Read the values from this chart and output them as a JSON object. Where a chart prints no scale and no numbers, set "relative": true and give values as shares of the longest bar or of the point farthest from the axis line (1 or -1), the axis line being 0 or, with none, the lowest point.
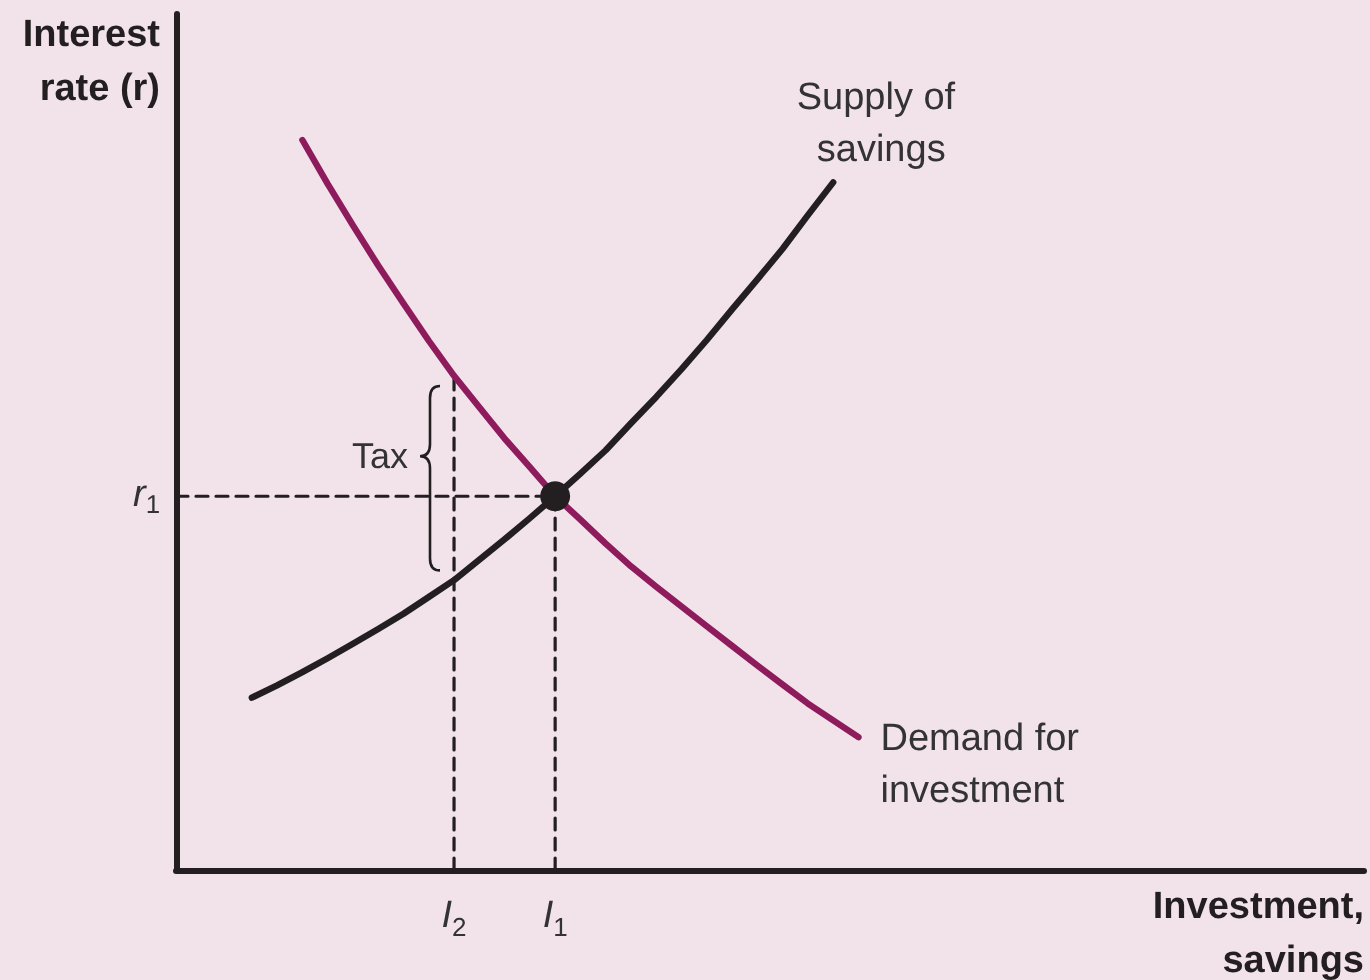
{
  "chart_data": {
    "type": "line",
    "relative": true,
    "xlabel": "Investment, savings",
    "ylabel": "Interest rate (r)",
    "categories": [
      null,
      null,
      null,
      null,
      null,
      null,
      null,
      null,
      null,
      null,
      null,
      "I$_{2}$",
      null,
      null,
      null,
      "I$_{1}$",
      null,
      null,
      null,
      null,
      null,
      null,
      null,
      null,
      null,
      null,
      null,
      null,
      null,
      null,
      null,
      null,
      null,
      null,
      null,
      null,
      null,
      null,
      null,
      null,
      null,
      null,
      null,
      null,
      null,
      null,
      null,
      null
    ],
    "marker": "none",
    "line_style": "solid",
    "grid": false,
    "legend": false,
    "series": [
      {
        "name": "Supply of savings",
        "color": "#231f20",
        "values": [
          null,
          null,
          null,
          0.236,
          0.253,
          0.271,
          0.29,
          0.31,
          0.33,
          0.351,
          0.374,
          0.397,
          0.425,
          0.453,
          0.482,
          0.512,
          0.543,
          0.575,
          0.612,
          0.648,
          0.686,
          0.726,
          0.768,
          0.809,
          0.851,
          0.897,
          0.942,
          null,
          null,
          null,
          null,
          null,
          null,
          null,
          null,
          null,
          null,
          null,
          null,
          null,
          null,
          null,
          null,
          null,
          null,
          null,
          null,
          null
        ]
      },
      {
        "name": "Demand for investment",
        "color": "#8e1c5c",
        "values": [
          null,
          null,
          null,
          null,
          null,
          1,
          0.94,
          0.883,
          0.828,
          0.776,
          0.725,
          0.677,
          0.634,
          0.591,
          0.552,
          0.512,
          0.48,
          0.447,
          0.416,
          0.388,
          0.361,
          0.334,
          0.307,
          0.28,
          0.254,
          0.228,
          0.205,
          0.182,
          null,
          null,
          null,
          null,
          null,
          null,
          null,
          null,
          null,
          null,
          null,
          null,
          null,
          null,
          null,
          null,
          null,
          null,
          null,
          null
        ]
      },
      {
        "color": "#231f20",
        "line_style": "dashed",
        "values": [
          0.512,
          0.512,
          0.512,
          0.512,
          0.512,
          0.512,
          0.512,
          0.512,
          0.512,
          0.512,
          0.512,
          0.512,
          0.512,
          0.512,
          0.512,
          0.512,
          null,
          null,
          null,
          null,
          null,
          null,
          null,
          null,
          null,
          null,
          null,
          null,
          null,
          null,
          null,
          null,
          null,
          null,
          null,
          null,
          null,
          null,
          null,
          null,
          null,
          null,
          null,
          null,
          null,
          null,
          null,
          null
        ]
      },
      {
        "color": "#231f20",
        "line_style": "dashed",
        "x": [
          "I$_{1}$",
          "I$_{1}$"
        ],
        "values": [
          0,
          0.512
        ]
      },
      {
        "color": "#231f20",
        "line_style": "dashed",
        "x": [
          "I$_{2}$",
          "I$_{2}$"
        ],
        "values": [
          0,
          0.677
        ]
      },
      {
        "type": "scatter",
        "marker": "circle",
        "color": "#231f20",
        "x": [
          "I$_{1}$"
        ],
        "values": [
          0.512
        ]
      }
    ],
    "annotations": [
      "r$_{1}$",
      {
        "text": "Tax",
        "x": "I$_{2}$",
        "y": 0.567
      }
    ]
  }
}
